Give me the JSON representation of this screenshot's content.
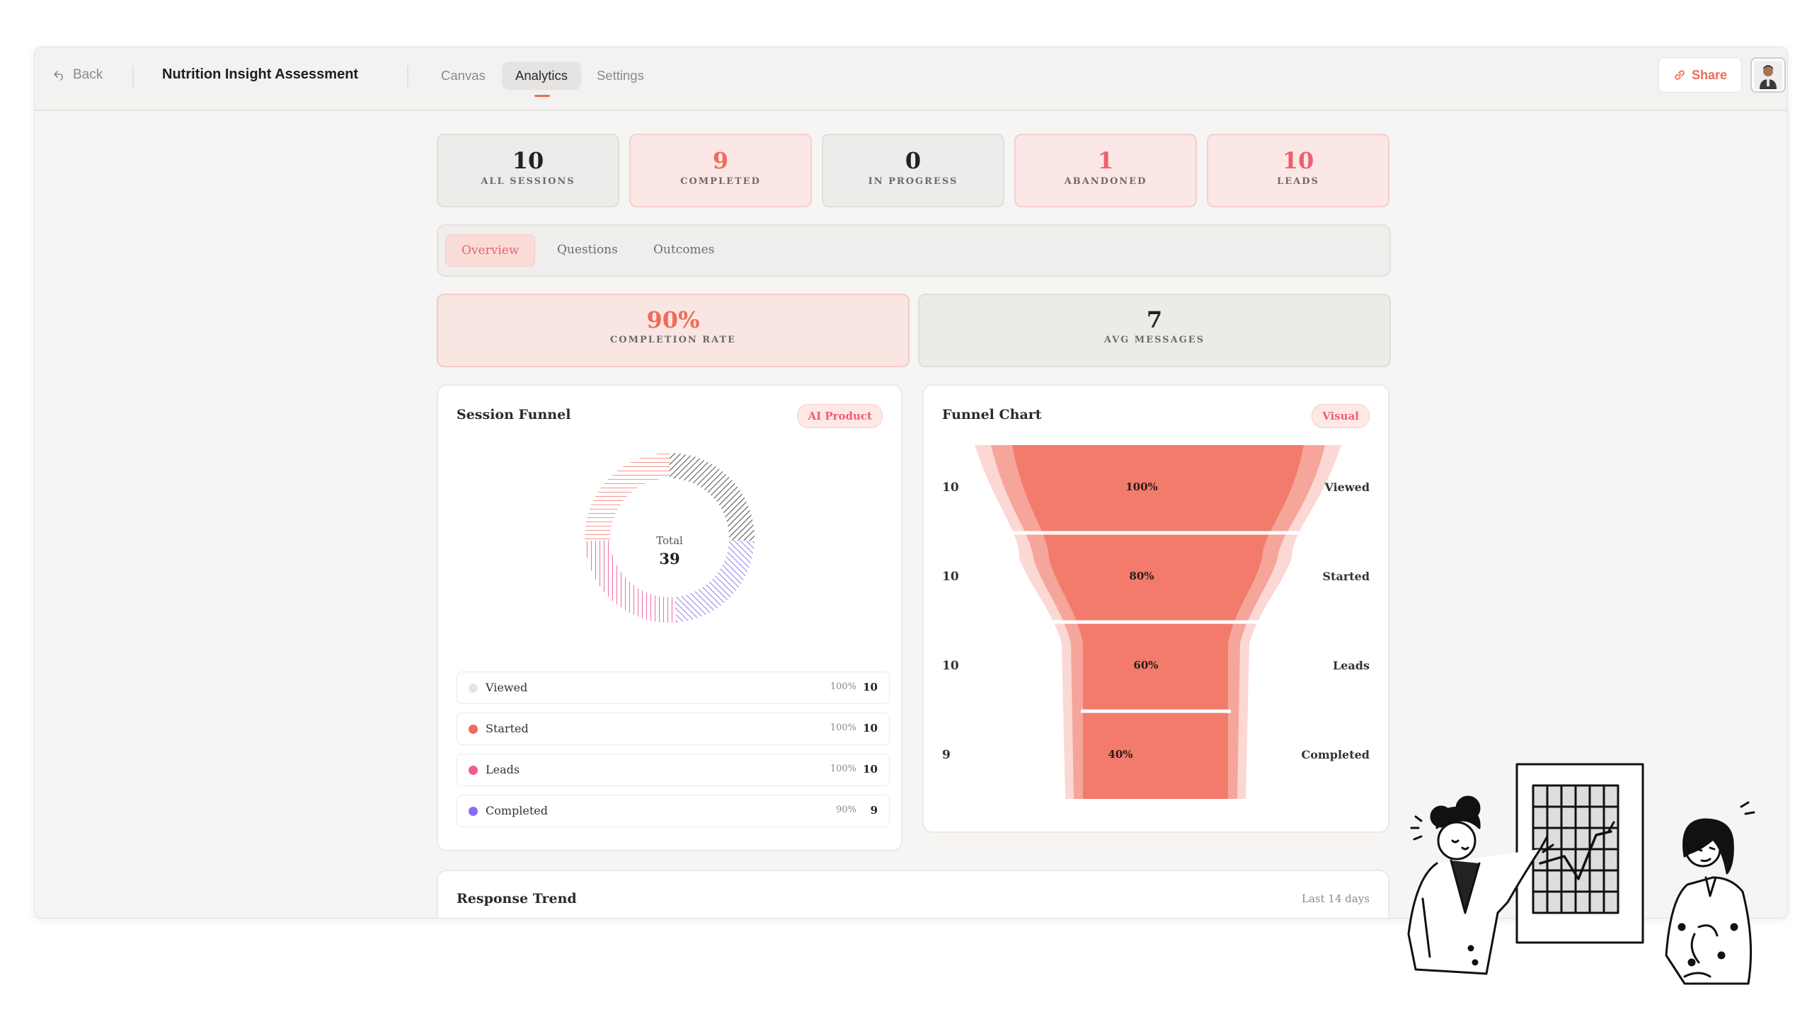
{
  "topbar": {
    "back_label": "Back",
    "title": "Nutrition Insight Assessment",
    "tabs": [
      {
        "label": "Canvas",
        "active": false
      },
      {
        "label": "Analytics",
        "active": true
      },
      {
        "label": "Settings",
        "active": false
      }
    ],
    "share_label": "Share"
  },
  "stats": [
    {
      "value": "10",
      "label": "ALL SESSIONS",
      "color": "#222222"
    },
    {
      "value": "9",
      "label": "COMPLETED",
      "color": "#ef6b5b"
    },
    {
      "value": "0",
      "label": "IN PROGRESS",
      "color": "#222222"
    },
    {
      "value": "1",
      "label": "ABANDONED",
      "color": "#ef5e72"
    },
    {
      "value": "10",
      "label": "LEADS",
      "color": "#ef5e72"
    }
  ],
  "subtabs": [
    {
      "label": "Overview",
      "active": true
    },
    {
      "label": "Questions",
      "active": false
    },
    {
      "label": "Outcomes",
      "active": false
    }
  ],
  "metrics": {
    "completion": {
      "value": "90%",
      "label": "COMPLETION RATE",
      "color": "#ef6b5b"
    },
    "avg_messages": {
      "value": "7",
      "label": "AVG MESSAGES"
    }
  },
  "session_funnel": {
    "title": "Session Funnel",
    "badge": "AI Product",
    "total_label": "Total",
    "total_value": "39",
    "legend": [
      {
        "name": "Viewed",
        "pct": "100%",
        "value": "10",
        "color": "#e6e4e1"
      },
      {
        "name": "Started",
        "pct": "100%",
        "value": "10",
        "color": "#ef6b5b"
      },
      {
        "name": "Leads",
        "pct": "100%",
        "value": "10",
        "color": "#ef5e88"
      },
      {
        "name": "Completed",
        "pct": "90%",
        "value": "9",
        "color": "#8b6cf0"
      }
    ]
  },
  "funnel_chart": {
    "title": "Funnel Chart",
    "badge": "Visual",
    "stages": [
      {
        "name": "Viewed",
        "count": "10",
        "pct": "100%"
      },
      {
        "name": "Started",
        "count": "10",
        "pct": "80%"
      },
      {
        "name": "Leads",
        "count": "10",
        "pct": "60%"
      },
      {
        "name": "Completed",
        "count": "9",
        "pct": "40%"
      }
    ],
    "colors": {
      "core": "#f27b6b",
      "mid": "#f6a59b",
      "outer": "#fbd8d3"
    }
  },
  "response_trend": {
    "title": "Response Trend",
    "range_label": "Last 14 days"
  },
  "chart_data": {
    "type": "pie",
    "categories": [
      "Viewed",
      "Started",
      "Leads",
      "Completed"
    ],
    "values": [
      10,
      10,
      10,
      9
    ],
    "title": "Session Funnel"
  }
}
